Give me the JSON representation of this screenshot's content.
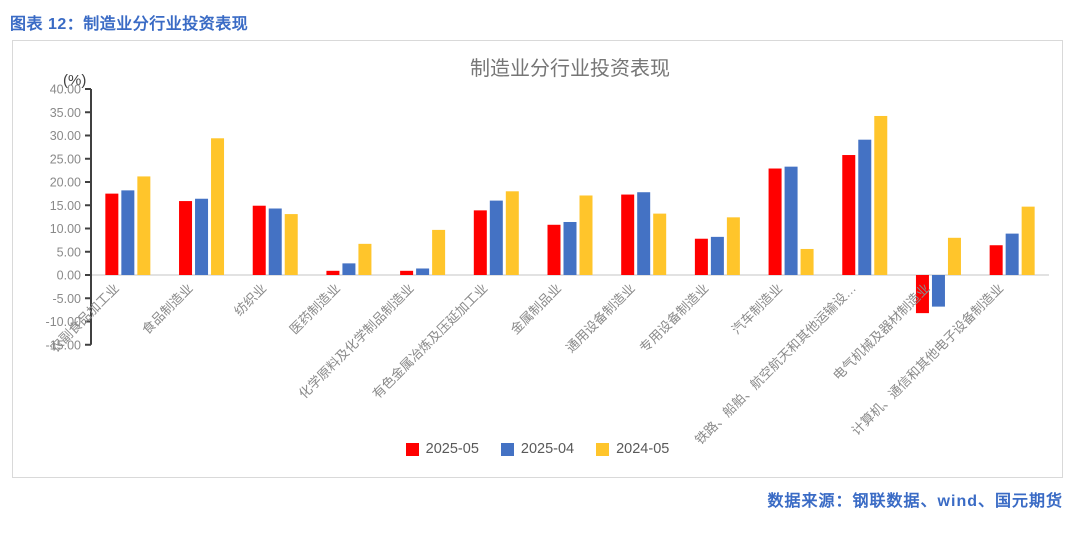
{
  "header": {
    "title": "图表 12：制造业分行业投资表现"
  },
  "footer": {
    "source": "数据来源：钢联数据、wind、国元期货"
  },
  "colors": {
    "header_blue": "#3A6BC5",
    "series_red": "#FF0000",
    "series_blue": "#4472C4",
    "series_yellow": "#FFC52B",
    "axis": "#404040",
    "zero_line": "#D9D9D9",
    "tick_text": "#8a8a8a",
    "title_text": "#767676"
  },
  "chart_data": {
    "type": "bar",
    "title": "制造业分行业投资表现",
    "unit_label": "(%)",
    "xlabel": "",
    "ylabel": "(%)",
    "ylim": [
      -15,
      40
    ],
    "ytick_step": 5,
    "ytick_format": "0.00",
    "grid": "zero-line-only",
    "legend_position": "bottom-center",
    "categories": [
      "农副食品加工业",
      "食品制造业",
      "纺织业",
      "医药制造业",
      "化学原料及化学制品制造业",
      "有色金属冶炼及压延加工业",
      "金属制品业",
      "通用设备制造业",
      "专用设备制造业",
      "汽车制造业",
      "铁路、船舶、航空航天和其他运输设…",
      "电气机械及器材制造业",
      "计算机、通信和其他电子设备制造业"
    ],
    "series": [
      {
        "name": "2025-05",
        "color": "#FF0000",
        "values": [
          17.5,
          15.9,
          14.9,
          0.9,
          0.9,
          13.9,
          10.8,
          17.3,
          7.8,
          22.9,
          25.8,
          -8.2,
          6.4
        ]
      },
      {
        "name": "2025-04",
        "color": "#4472C4",
        "values": [
          18.2,
          16.4,
          14.3,
          2.5,
          1.4,
          16.0,
          11.4,
          17.8,
          8.2,
          23.3,
          29.1,
          -6.8,
          8.9
        ]
      },
      {
        "name": "2024-05",
        "color": "#FFC52B",
        "values": [
          21.2,
          29.4,
          13.1,
          6.7,
          9.7,
          18.0,
          17.1,
          13.2,
          12.4,
          5.6,
          34.2,
          8.0,
          14.7
        ]
      }
    ]
  }
}
